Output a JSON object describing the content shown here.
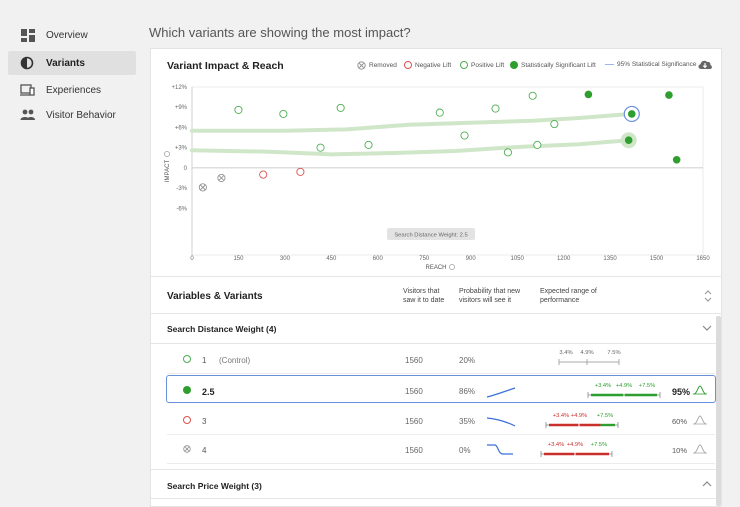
{
  "sidebar": {
    "items": [
      {
        "label": "Overview",
        "icon": "dashboard-icon"
      },
      {
        "label": "Variants",
        "icon": "contrast-icon",
        "active": true
      },
      {
        "label": "Experiences",
        "icon": "devices-icon"
      },
      {
        "label": "Visitor Behavior",
        "icon": "people-icon"
      }
    ]
  },
  "page": {
    "title": "Which variants are showing the most impact?"
  },
  "chart_section": {
    "title": "Variant Impact & Reach",
    "legend": {
      "removed": "Removed",
      "negative": "Negative Lift",
      "positive": "Positive Lift",
      "significant": "Statistically Significant Lift",
      "significance_line": "95% Statistical Significance"
    },
    "tooltip": "Search Distance Weight: 2.5",
    "colors": {
      "positive": "#4caf50",
      "significant": "#2e9e2e",
      "negative": "#d9534f",
      "removed": "#999999",
      "band": "#cfe7c8",
      "highlight_ring": "#6a8fdb"
    }
  },
  "chart_data": {
    "type": "scatter",
    "xlabel": "REACH",
    "ylabel": "IMPACT",
    "xlim": [
      0,
      1650
    ],
    "ylim": [
      -7,
      12
    ],
    "x_ticks": [
      "0",
      "150",
      "300",
      "450",
      "600",
      "750",
      "900",
      "1050",
      "1200",
      "1350",
      "1500",
      "1650"
    ],
    "y_ticks": [
      "+12%",
      "+9%",
      "+6%",
      "+3%",
      "0",
      "-3%",
      "-6%"
    ],
    "y_tick_values": [
      12,
      9,
      6,
      3,
      0,
      -3,
      -6
    ],
    "points": [
      {
        "x": 35,
        "y": -2.9,
        "kind": "removed"
      },
      {
        "x": 95,
        "y": -1.5,
        "kind": "removed"
      },
      {
        "x": 230,
        "y": -1.0,
        "kind": "negative"
      },
      {
        "x": 350,
        "y": -0.6,
        "kind": "negative"
      },
      {
        "x": 150,
        "y": 8.6,
        "kind": "positive"
      },
      {
        "x": 295,
        "y": 8.0,
        "kind": "positive"
      },
      {
        "x": 480,
        "y": 8.9,
        "kind": "positive"
      },
      {
        "x": 415,
        "y": 3.0,
        "kind": "positive"
      },
      {
        "x": 570,
        "y": 3.4,
        "kind": "positive"
      },
      {
        "x": 800,
        "y": 8.2,
        "kind": "positive"
      },
      {
        "x": 880,
        "y": 4.8,
        "kind": "positive"
      },
      {
        "x": 980,
        "y": 8.8,
        "kind": "positive"
      },
      {
        "x": 1020,
        "y": 2.3,
        "kind": "positive"
      },
      {
        "x": 1100,
        "y": 10.7,
        "kind": "positive"
      },
      {
        "x": 1115,
        "y": 3.4,
        "kind": "positive"
      },
      {
        "x": 1170,
        "y": 6.5,
        "kind": "positive"
      },
      {
        "x": 1280,
        "y": 10.9,
        "kind": "significant"
      },
      {
        "x": 1420,
        "y": 8.0,
        "kind": "significant",
        "highlight": true
      },
      {
        "x": 1410,
        "y": 4.1,
        "kind": "significant",
        "halo": true
      },
      {
        "x": 1540,
        "y": 10.8,
        "kind": "significant"
      },
      {
        "x": 1565,
        "y": 1.2,
        "kind": "significant"
      }
    ],
    "bands": [
      {
        "name": "upper",
        "points": [
          [
            0,
            5.5
          ],
          [
            300,
            5.5
          ],
          [
            500,
            5.7
          ],
          [
            700,
            6.4
          ],
          [
            900,
            6.7
          ],
          [
            1100,
            7.0
          ],
          [
            1250,
            7.4
          ],
          [
            1420,
            8.0
          ]
        ]
      },
      {
        "name": "lower",
        "points": [
          [
            0,
            2.6
          ],
          [
            250,
            2.4
          ],
          [
            450,
            2.0
          ],
          [
            650,
            2.2
          ],
          [
            850,
            2.5
          ],
          [
            1050,
            3.1
          ],
          [
            1250,
            3.5
          ],
          [
            1410,
            4.1
          ]
        ]
      }
    ]
  },
  "variables": {
    "title": "Variables & Variants",
    "col_visitors": [
      "Visitors that",
      "saw it to date"
    ],
    "col_probability": [
      "Probability that new",
      "visitors will see it"
    ],
    "col_range": [
      "Expected range of",
      "performance"
    ],
    "groups": [
      {
        "title": "Search Distance Weight (4)",
        "rows": [
          {
            "num": "1",
            "note": "(Control)",
            "visitors": "1560",
            "probability": "20%",
            "kind": "positive",
            "range": {
              "low": "3.4%",
              "mid": "4.9%",
              "high": "7.5%"
            },
            "pct": ""
          },
          {
            "num": "2.5",
            "note": "",
            "visitors": "1560",
            "probability": "86%",
            "kind": "significant",
            "selected": true,
            "range": {
              "low": "+3.4%",
              "mid": "+4.9%",
              "high": "+7.5%"
            },
            "pct": "95%"
          },
          {
            "num": "3",
            "note": "",
            "visitors": "1560",
            "probability": "35%",
            "kind": "negative",
            "range": {
              "low": "+3.4%",
              "mid": "+4.9%",
              "high": "+7.5%"
            },
            "pct": "60%"
          },
          {
            "num": "4",
            "note": "",
            "visitors": "1560",
            "probability": "0%",
            "kind": "removed",
            "range": {
              "low": "+3.4%",
              "mid": "+4.9%",
              "high": "+7.5%"
            },
            "pct": "10%"
          }
        ]
      },
      {
        "title": "Search Price Weight (3)",
        "rows": []
      }
    ]
  }
}
